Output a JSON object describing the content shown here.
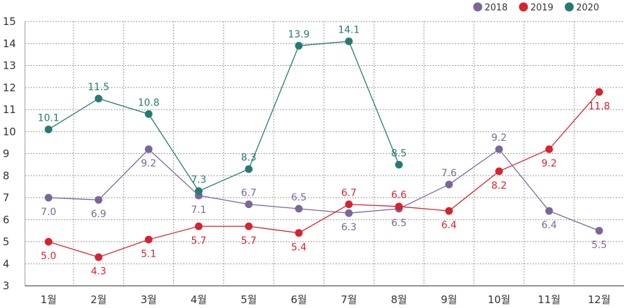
{
  "chart_data": {
    "type": "line",
    "categories": [
      "1월",
      "2월",
      "3월",
      "4월",
      "5월",
      "6월",
      "7월",
      "8월",
      "9월",
      "10월",
      "11월",
      "12월"
    ],
    "series": [
      {
        "name": "2018",
        "color": "#7b6699",
        "values": [
          7.0,
          6.9,
          9.2,
          7.1,
          6.7,
          6.5,
          6.3,
          6.5,
          7.6,
          9.2,
          6.4,
          5.5
        ],
        "labels": [
          "7.0",
          "6.9",
          "9.2",
          "7.1",
          "6.7",
          "6.5",
          "6.3",
          "6.5",
          "7.6",
          "9.2",
          "6.4",
          "5.5"
        ]
      },
      {
        "name": "2019",
        "color": "#d7232f",
        "values": [
          5.0,
          4.3,
          5.1,
          5.7,
          5.7,
          5.4,
          6.7,
          6.6,
          6.4,
          8.2,
          9.2,
          11.8
        ],
        "labels": [
          "5.0",
          "4.3",
          "5.1",
          "5.7",
          "5.7",
          "5.4",
          "6.7",
          "6.6",
          "6.4",
          "8.2",
          "9.2",
          "11.8"
        ]
      },
      {
        "name": "2020",
        "color": "#267a72",
        "values": [
          10.1,
          11.5,
          10.8,
          7.3,
          8.3,
          13.9,
          14.1,
          8.5,
          null,
          null,
          null,
          null
        ],
        "labels": [
          "10.1",
          "11.5",
          "10.8",
          "7.3",
          "8.3",
          "13.9",
          "14.1",
          "8.5",
          "",
          "",
          "",
          ""
        ]
      }
    ],
    "ylim": [
      3,
      15
    ],
    "yticks": [
      "3",
      "4",
      "5",
      "6",
      "7",
      "8",
      "9",
      "10",
      "11",
      "12",
      "13",
      "14",
      "15"
    ],
    "grid": true,
    "legend_position": "top-right"
  }
}
